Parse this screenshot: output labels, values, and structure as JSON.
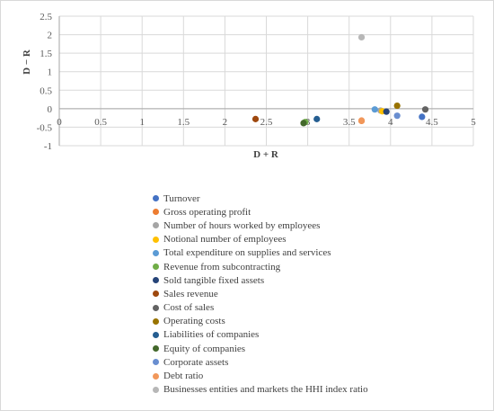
{
  "chart_data": {
    "type": "scatter",
    "title": "",
    "xlabel": "D + R",
    "ylabel": "D − R",
    "xlim": [
      0,
      5
    ],
    "ylim": [
      -1,
      2.5
    ],
    "x_ticks": [
      "0",
      "0.5",
      "1",
      "1.5",
      "2",
      "2.5",
      "3",
      "3.5",
      "4",
      "4.5",
      "5"
    ],
    "y_ticks": [
      "2.5",
      "2",
      "1.5",
      "1",
      "0.5",
      "0",
      "-0.5",
      "-1"
    ],
    "grid": true,
    "legend_position": "bottom",
    "series": [
      {
        "name": "Turnover",
        "color": "#4472C4",
        "x": 4.38,
        "y": -0.22
      },
      {
        "name": "Gross operating profit",
        "color": "#ED7D31",
        "x": 3.65,
        "y": -0.33
      },
      {
        "name": "Number of hours worked by employees",
        "color": "#A5A5A5",
        "x": 3.88,
        "y": -0.05
      },
      {
        "name": "Notional number of employees",
        "color": "#FFC000",
        "x": 3.9,
        "y": -0.07
      },
      {
        "name": "Total expenditure on supplies and services",
        "color": "#5B9BD5",
        "x": 3.81,
        "y": -0.02
      },
      {
        "name": "Revenue from subcontracting",
        "color": "#70AD47",
        "x": 2.97,
        "y": -0.36
      },
      {
        "name": "Sold tangible fixed assets",
        "color": "#264478",
        "x": 3.95,
        "y": -0.08
      },
      {
        "name": "Sales revenue",
        "color": "#9E480E",
        "x": 2.37,
        "y": -0.28
      },
      {
        "name": "Cost of sales",
        "color": "#636363",
        "x": 4.42,
        "y": -0.02
      },
      {
        "name": "Operating costs",
        "color": "#997300",
        "x": 4.08,
        "y": 0.08
      },
      {
        "name": "Liabilities of companies",
        "color": "#255E91",
        "x": 3.11,
        "y": -0.28
      },
      {
        "name": "Equity of companies",
        "color": "#43682B",
        "x": 2.95,
        "y": -0.39
      },
      {
        "name": "Corporate assets",
        "color": "#698ED0",
        "x": 4.08,
        "y": -0.19
      },
      {
        "name": "Debt ratio",
        "color": "#F1975A",
        "x": 3.65,
        "y": -0.32
      },
      {
        "name": "Businesses entities and markets the HHI index ratio",
        "color": "#B7B7B7",
        "x": 3.65,
        "y": 1.93
      }
    ]
  }
}
